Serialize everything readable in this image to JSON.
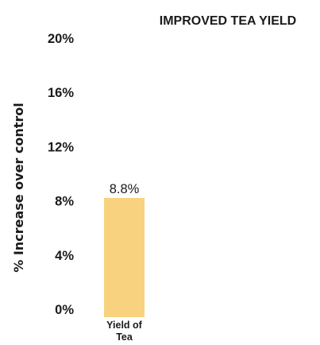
{
  "chart_data": {
    "type": "bar",
    "title": "IMPROVED TEA YIELD",
    "ylabel": "% Increase over control",
    "xlabel": "",
    "categories": [
      "Yield of Tea"
    ],
    "category_lines": [
      [
        "Yield of",
        "Tea"
      ]
    ],
    "values": [
      8.8
    ],
    "data_labels": [
      "8.8%"
    ],
    "yticks": [
      "0%",
      "4%",
      "8%",
      "12%",
      "16%",
      "20%"
    ],
    "ytick_values": [
      0,
      4,
      8,
      12,
      16,
      20
    ],
    "ylim": [
      0,
      20
    ],
    "grid": false,
    "legend": "none",
    "colors": {
      "bar": "#f9d27f",
      "text": "#1a1a1a"
    }
  }
}
